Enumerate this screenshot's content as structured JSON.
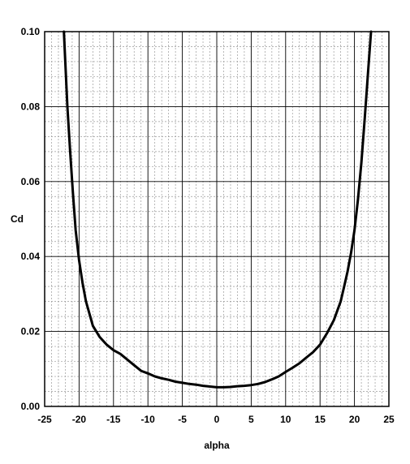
{
  "chart_data": {
    "type": "line",
    "title": "",
    "xlabel": "alpha",
    "ylabel": "Cd",
    "xlim": [
      -25,
      25
    ],
    "ylim": [
      0,
      0.1
    ],
    "x_ticks": [
      "-25",
      "-20",
      "-15",
      "-10",
      "-5",
      "0",
      "5",
      "10",
      "15",
      "20",
      "25"
    ],
    "y_ticks": [
      "0.00",
      "0.02",
      "0.04",
      "0.06",
      "0.08",
      "0.10"
    ],
    "grid": true,
    "legend": "none",
    "series": [
      {
        "color": "#000000",
        "x": [
          -22.2,
          -22.0,
          -21.7,
          -21.3,
          -20.9,
          -20.5,
          -20.0,
          -19.5,
          -19.0,
          -18.0,
          -17.0,
          -16.0,
          -15.0,
          -14.0,
          -13.0,
          -12.0,
          -11.0,
          -10.0,
          -9.0,
          -8.0,
          -7.0,
          -6.0,
          -5.0,
          -4.0,
          -3.0,
          -2.0,
          -1.0,
          0.0,
          1.0,
          2.0,
          3.0,
          4.0,
          5.0,
          6.0,
          7.0,
          8.0,
          9.0,
          10.0,
          11.0,
          12.0,
          13.0,
          14.0,
          15.0,
          16.0,
          17.0,
          18.0,
          18.5,
          19.0,
          19.5,
          20.0,
          20.5,
          21.0,
          21.5,
          22.0,
          22.4
        ],
        "y": [
          0.1,
          0.092,
          0.08,
          0.068,
          0.057,
          0.047,
          0.039,
          0.033,
          0.028,
          0.0215,
          0.0185,
          0.0165,
          0.015,
          0.014,
          0.0125,
          0.011,
          0.0095,
          0.0088,
          0.008,
          0.0075,
          0.0071,
          0.0066,
          0.0063,
          0.006,
          0.0058,
          0.0055,
          0.0053,
          0.0051,
          0.0051,
          0.0052,
          0.0054,
          0.0055,
          0.0057,
          0.006,
          0.0065,
          0.0072,
          0.008,
          0.0092,
          0.0103,
          0.0115,
          0.013,
          0.0145,
          0.0165,
          0.0195,
          0.023,
          0.028,
          0.032,
          0.036,
          0.041,
          0.047,
          0.055,
          0.065,
          0.077,
          0.09,
          0.1
        ]
      }
    ]
  }
}
